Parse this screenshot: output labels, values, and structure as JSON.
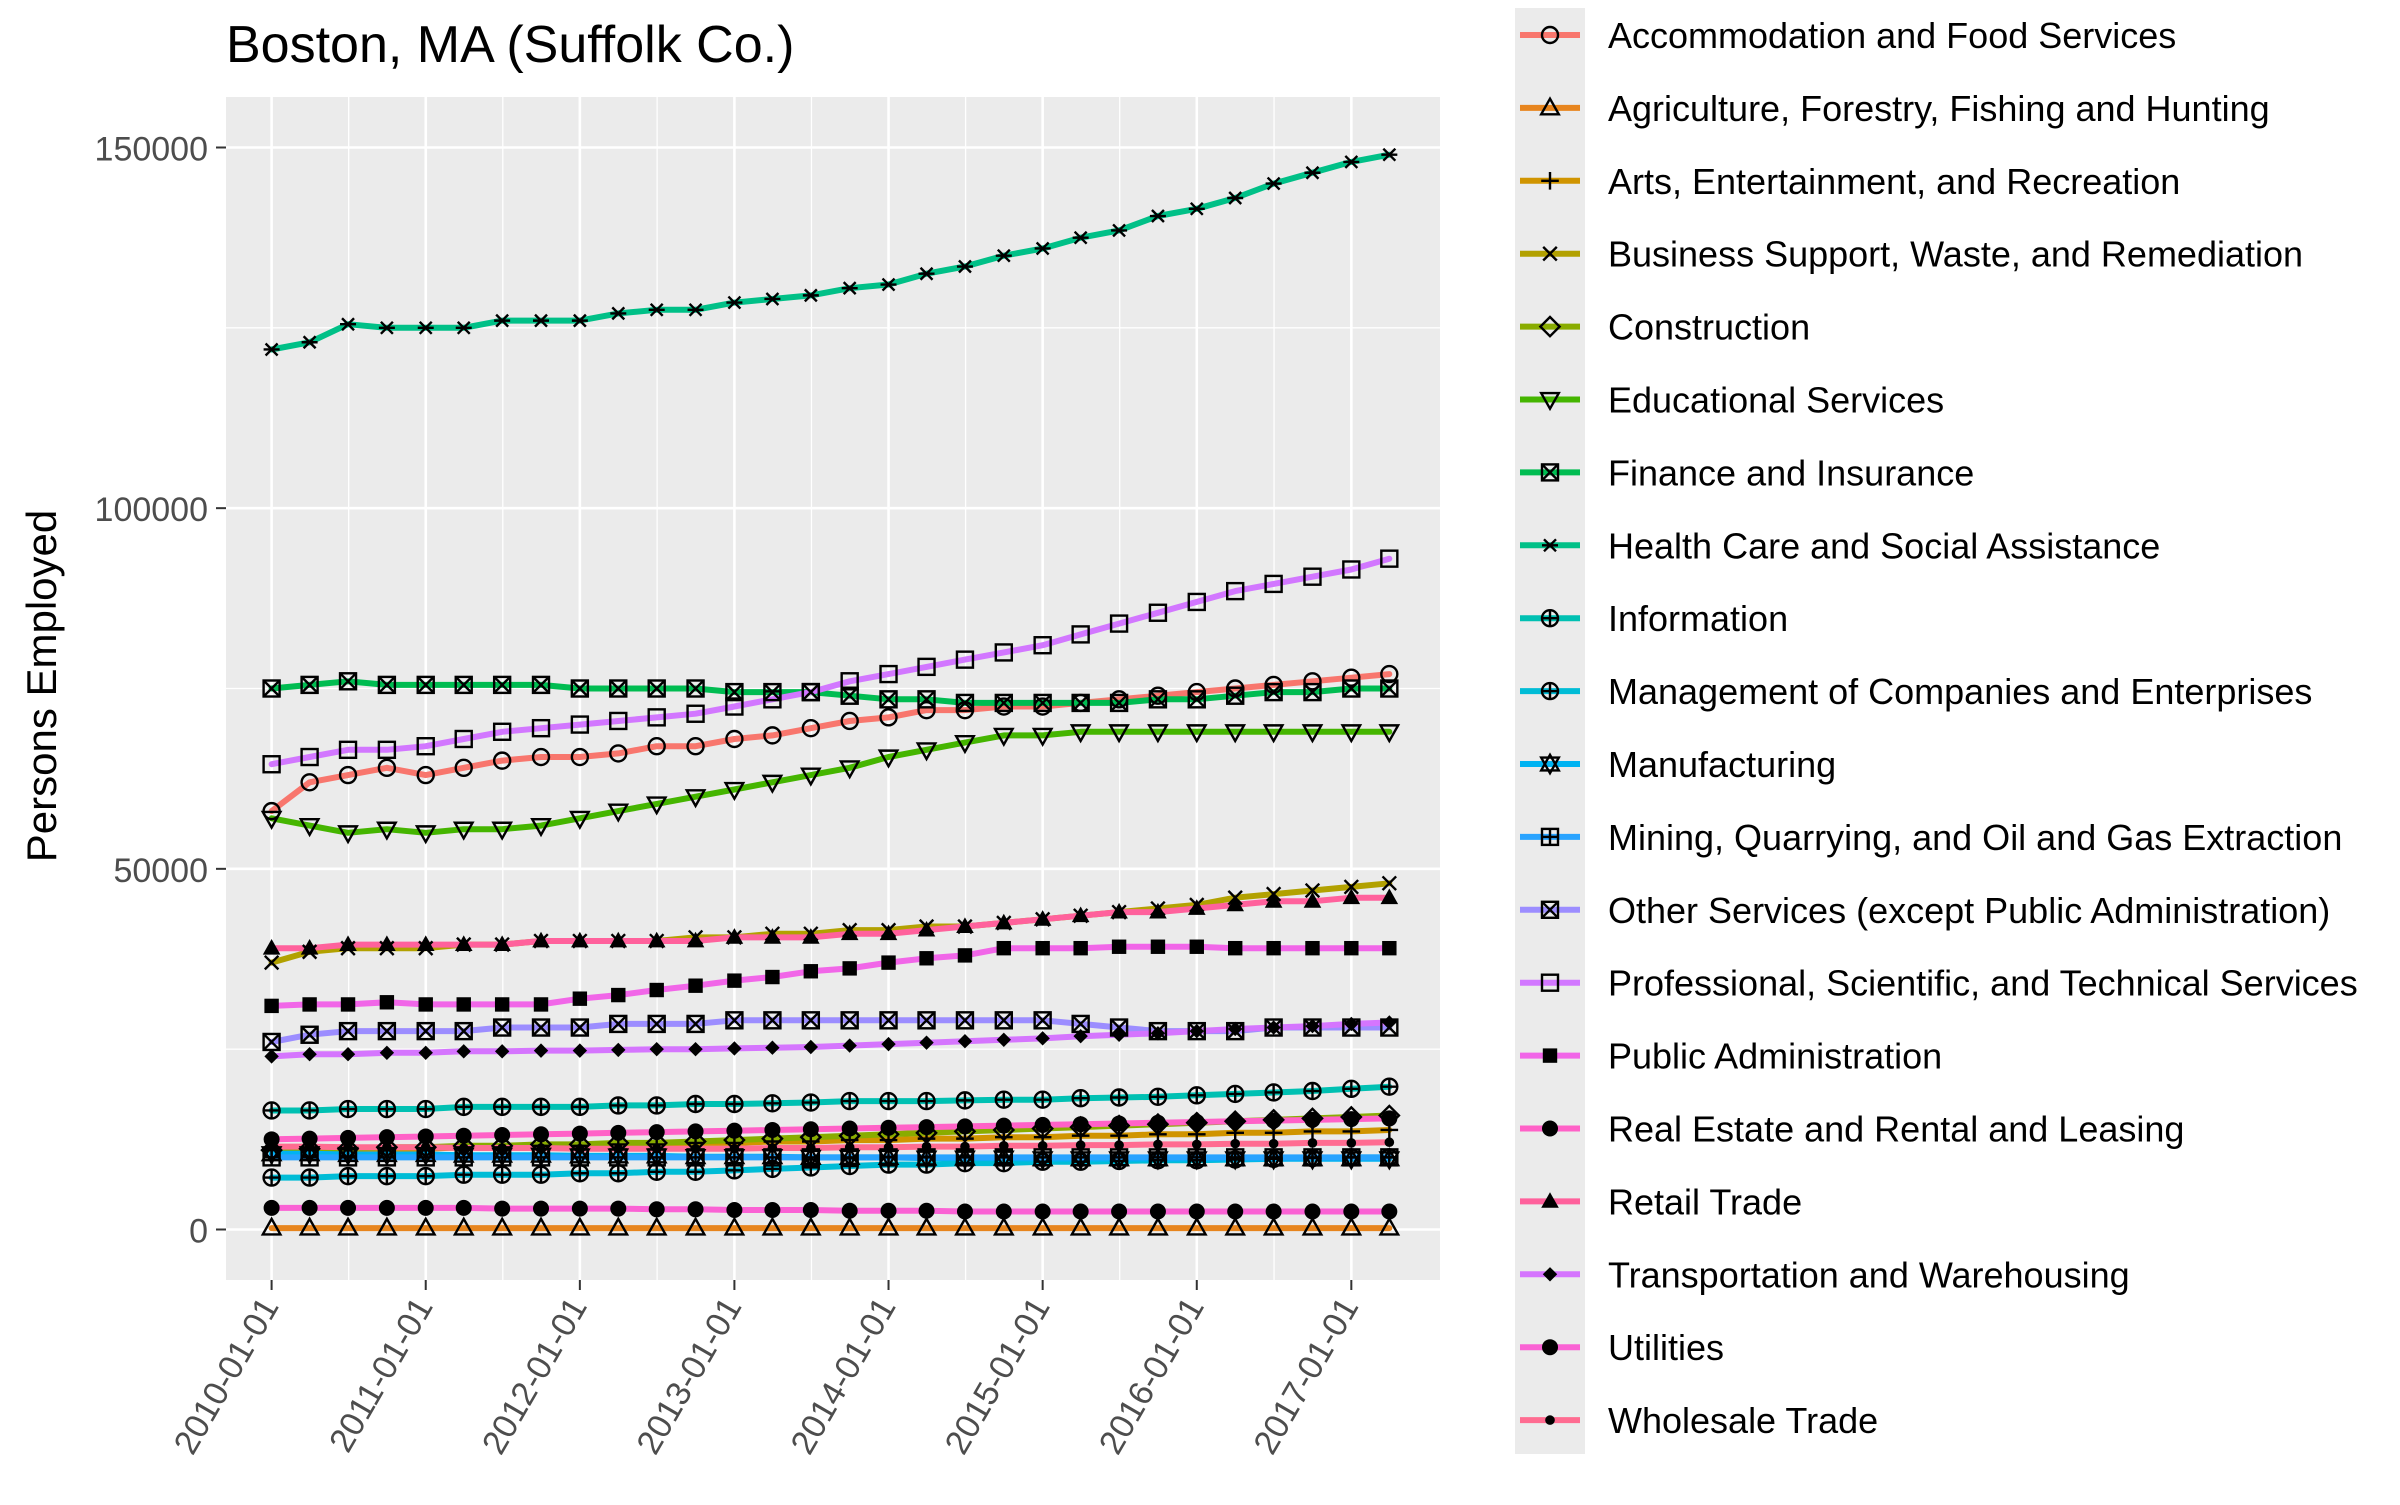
{
  "chart_data": {
    "type": "line",
    "title": "Boston, MA (Suffolk Co.)",
    "xlabel": "",
    "ylabel": "Persons Employed",
    "ylim": [
      -7000,
      157000
    ],
    "xlim": [
      "2009-09-15",
      "2017-07-30"
    ],
    "y_ticks": [
      0,
      50000,
      100000,
      150000
    ],
    "x_ticks": [
      "2010-01-01",
      "2011-01-01",
      "2012-01-01",
      "2013-01-01",
      "2014-01-01",
      "2015-01-01",
      "2016-01-01",
      "2017-01-01"
    ],
    "grid": true,
    "legend_position": "right",
    "x": [
      "2010-01-01",
      "2010-04-01",
      "2010-07-01",
      "2010-10-01",
      "2011-01-01",
      "2011-04-01",
      "2011-07-01",
      "2011-10-01",
      "2012-01-01",
      "2012-04-01",
      "2012-07-01",
      "2012-10-01",
      "2013-01-01",
      "2013-04-01",
      "2013-07-01",
      "2013-10-01",
      "2014-01-01",
      "2014-04-01",
      "2014-07-01",
      "2014-10-01",
      "2015-01-01",
      "2015-04-01",
      "2015-07-01",
      "2015-10-01",
      "2016-01-01",
      "2016-04-01",
      "2016-07-01",
      "2016-10-01",
      "2017-01-01",
      "2017-04-01"
    ],
    "series": [
      {
        "name": "Accommodation and Food Services",
        "color": "#F8766D",
        "marker": "circle-open",
        "values": [
          58000,
          62000,
          63000,
          64000,
          63000,
          64000,
          65000,
          65500,
          65500,
          66000,
          67000,
          67000,
          68000,
          68500,
          69500,
          70500,
          71000,
          72000,
          72000,
          72500,
          72500,
          73000,
          73500,
          74000,
          74500,
          75000,
          75500,
          76000,
          76500,
          77000
        ]
      },
      {
        "name": "Agriculture, Forestry, Fishing and Hunting",
        "color": "#E7851E",
        "marker": "triangle-open",
        "values": [
          200,
          200,
          200,
          200,
          200,
          200,
          200,
          200,
          200,
          200,
          200,
          200,
          200,
          200,
          200,
          200,
          200,
          200,
          200,
          200,
          200,
          200,
          200,
          200,
          200,
          200,
          200,
          200,
          200,
          200
        ]
      },
      {
        "name": "Arts, Entertainment, and Recreation",
        "color": "#D09400",
        "marker": "plus",
        "values": [
          11000,
          11000,
          11200,
          11200,
          11200,
          11400,
          11400,
          11600,
          11600,
          11800,
          11800,
          12000,
          12000,
          12200,
          12200,
          12400,
          12400,
          12600,
          12600,
          12800,
          12800,
          13000,
          13000,
          13200,
          13200,
          13400,
          13400,
          13600,
          13600,
          13800
        ]
      },
      {
        "name": "Business Support, Waste, and Remediation",
        "color": "#B2A100",
        "marker": "cross",
        "values": [
          37000,
          38500,
          39000,
          39000,
          39000,
          39500,
          39500,
          40000,
          40000,
          40000,
          40000,
          40500,
          40500,
          41000,
          41000,
          41500,
          41500,
          42000,
          42000,
          42500,
          43000,
          43500,
          44000,
          44500,
          45000,
          46000,
          46500,
          47000,
          47500,
          48000
        ]
      },
      {
        "name": "Construction",
        "color": "#89AC00",
        "marker": "diamond-open",
        "values": [
          11000,
          11200,
          11200,
          11400,
          11400,
          11600,
          11600,
          11800,
          11800,
          12000,
          12000,
          12200,
          12400,
          12600,
          12800,
          13000,
          13200,
          13400,
          13600,
          13800,
          14000,
          14200,
          14400,
          14600,
          14800,
          15000,
          15200,
          15400,
          15600,
          15800
        ]
      },
      {
        "name": "Educational Services",
        "color": "#45B500",
        "marker": "triangle-down-open",
        "values": [
          57000,
          56000,
          55000,
          55500,
          55000,
          55500,
          55500,
          56000,
          57000,
          58000,
          59000,
          60000,
          61000,
          62000,
          63000,
          64000,
          65500,
          66500,
          67500,
          68500,
          68500,
          69000,
          69000,
          69000,
          69000,
          69000,
          69000,
          69000,
          69000,
          69000
        ]
      },
      {
        "name": "Finance and Insurance",
        "color": "#00BC51",
        "marker": "square-cross",
        "values": [
          75000,
          75500,
          76000,
          75500,
          75500,
          75500,
          75500,
          75500,
          75000,
          75000,
          75000,
          75000,
          74500,
          74500,
          74500,
          74000,
          73500,
          73500,
          73000,
          73000,
          73000,
          73000,
          73000,
          73500,
          73500,
          74000,
          74500,
          74500,
          75000,
          75000
        ]
      },
      {
        "name": "Health Care and Social Assistance",
        "color": "#00C087",
        "marker": "asterisk",
        "values": [
          122000,
          123000,
          125500,
          125000,
          125000,
          125000,
          126000,
          126000,
          126000,
          127000,
          127500,
          127500,
          128500,
          129000,
          129500,
          130500,
          131000,
          132500,
          133500,
          135000,
          136000,
          137500,
          138500,
          140500,
          141500,
          143000,
          145000,
          146500,
          148000,
          149000
        ]
      },
      {
        "name": "Information",
        "color": "#00C0B2",
        "marker": "circle-plus",
        "values": [
          16500,
          16500,
          16700,
          16700,
          16700,
          17000,
          17000,
          17000,
          17000,
          17200,
          17200,
          17400,
          17400,
          17500,
          17600,
          17800,
          17800,
          17800,
          17900,
          18000,
          18000,
          18200,
          18300,
          18400,
          18600,
          18800,
          19000,
          19200,
          19500,
          19800
        ]
      },
      {
        "name": "Management of Companies and Enterprises",
        "color": "#00BCD6",
        "marker": "circle-plus",
        "values": [
          7200,
          7200,
          7400,
          7400,
          7400,
          7600,
          7600,
          7600,
          7800,
          7800,
          8000,
          8000,
          8200,
          8400,
          8600,
          8800,
          9000,
          9000,
          9200,
          9200,
          9400,
          9400,
          9500,
          9600,
          9600,
          9700,
          9800,
          9900,
          10000,
          10000
        ]
      },
      {
        "name": "Manufacturing",
        "color": "#00B3F2",
        "marker": "star-of-david",
        "values": [
          10500,
          10500,
          10400,
          10400,
          10400,
          10300,
          10300,
          10300,
          10200,
          10200,
          10200,
          10100,
          10100,
          10100,
          10000,
          10000,
          10000,
          9900,
          9900,
          9900,
          9800,
          9800,
          9800,
          9800,
          9800,
          9800,
          9800,
          9800,
          9800,
          9800
        ]
      },
      {
        "name": "Mining, Quarrying, and Oil and Gas Extraction",
        "color": "#29A3FF",
        "marker": "square-plus",
        "values": [
          10000,
          10000,
          10000,
          10000,
          10000,
          10000,
          10000,
          10000,
          10000,
          10000,
          10000,
          10000,
          10000,
          10000,
          10000,
          10000,
          10000,
          10000,
          10000,
          10000,
          10000,
          10000,
          10000,
          10000,
          10000,
          10000,
          10000,
          10000,
          10000,
          10000
        ]
      },
      {
        "name": "Other Services (except Public Administration)",
        "color": "#9C8DFF",
        "marker": "square-cross",
        "values": [
          26000,
          27000,
          27500,
          27500,
          27500,
          27500,
          28000,
          28000,
          28000,
          28500,
          28500,
          28500,
          29000,
          29000,
          29000,
          29000,
          29000,
          29000,
          29000,
          29000,
          29000,
          28500,
          28000,
          27500,
          27500,
          27500,
          28000,
          28000,
          28000,
          28000
        ]
      },
      {
        "name": "Professional, Scientific, and Technical Services",
        "color": "#D277FF",
        "marker": "square-open",
        "values": [
          64500,
          65500,
          66500,
          66500,
          67000,
          68000,
          69000,
          69500,
          70000,
          70500,
          71000,
          71500,
          72500,
          73500,
          74500,
          76000,
          77000,
          78000,
          79000,
          80000,
          81000,
          82500,
          84000,
          85500,
          87000,
          88500,
          89500,
          90500,
          91500,
          93000
        ]
      },
      {
        "name": "Public Administration",
        "color": "#F166E8",
        "marker": "square",
        "values": [
          31000,
          31200,
          31200,
          31500,
          31200,
          31200,
          31200,
          31200,
          32000,
          32500,
          33200,
          33800,
          34500,
          35000,
          35800,
          36200,
          37000,
          37600,
          38000,
          39000,
          39000,
          39000,
          39200,
          39200,
          39200,
          39000,
          39000,
          39000,
          39000,
          39000
        ]
      },
      {
        "name": "Real Estate and Rental and Leasing",
        "color": "#FF61C7",
        "marker": "circle",
        "values": [
          12500,
          12600,
          12700,
          12800,
          12900,
          13000,
          13100,
          13200,
          13300,
          13400,
          13500,
          13600,
          13700,
          13800,
          13900,
          14000,
          14100,
          14200,
          14300,
          14400,
          14500,
          14600,
          14700,
          14800,
          14900,
          15000,
          15100,
          15200,
          15300,
          15400
        ]
      },
      {
        "name": "Retail Trade",
        "color": "#FF619C",
        "marker": "triangle",
        "values": [
          39000,
          39000,
          39500,
          39500,
          39500,
          39500,
          39500,
          40000,
          40000,
          40000,
          40000,
          40000,
          40500,
          40500,
          40500,
          41000,
          41000,
          41500,
          42000,
          42500,
          43000,
          43500,
          44000,
          44000,
          44500,
          45000,
          45500,
          45500,
          46000,
          46000
        ]
      },
      {
        "name": "Transportation and Warehousing",
        "color": "#D575FE",
        "marker": "diamond",
        "values": [
          24000,
          24300,
          24300,
          24500,
          24500,
          24700,
          24700,
          24800,
          24800,
          24900,
          25000,
          25000,
          25100,
          25200,
          25300,
          25500,
          25700,
          25900,
          26100,
          26300,
          26500,
          26800,
          27000,
          27200,
          27500,
          27800,
          28000,
          28200,
          28500,
          28700
        ]
      },
      {
        "name": "Utilities",
        "color": "#FA62D4",
        "marker": "circle",
        "values": [
          3000,
          3000,
          3000,
          3000,
          3000,
          3000,
          2900,
          2900,
          2900,
          2900,
          2800,
          2800,
          2700,
          2700,
          2700,
          2600,
          2600,
          2600,
          2500,
          2500,
          2500,
          2500,
          2500,
          2500,
          2500,
          2500,
          2500,
          2500,
          2500,
          2500
        ]
      },
      {
        "name": "Wholesale Trade",
        "color": "#FF6C91",
        "marker": "dot",
        "values": [
          11500,
          11500,
          11400,
          11400,
          11400,
          11300,
          11300,
          11300,
          11200,
          11200,
          11200,
          11200,
          11200,
          11300,
          11300,
          11400,
          11400,
          11500,
          11500,
          11600,
          11600,
          11700,
          11700,
          11800,
          11800,
          11900,
          11900,
          12000,
          12000,
          12100
        ]
      }
    ]
  }
}
